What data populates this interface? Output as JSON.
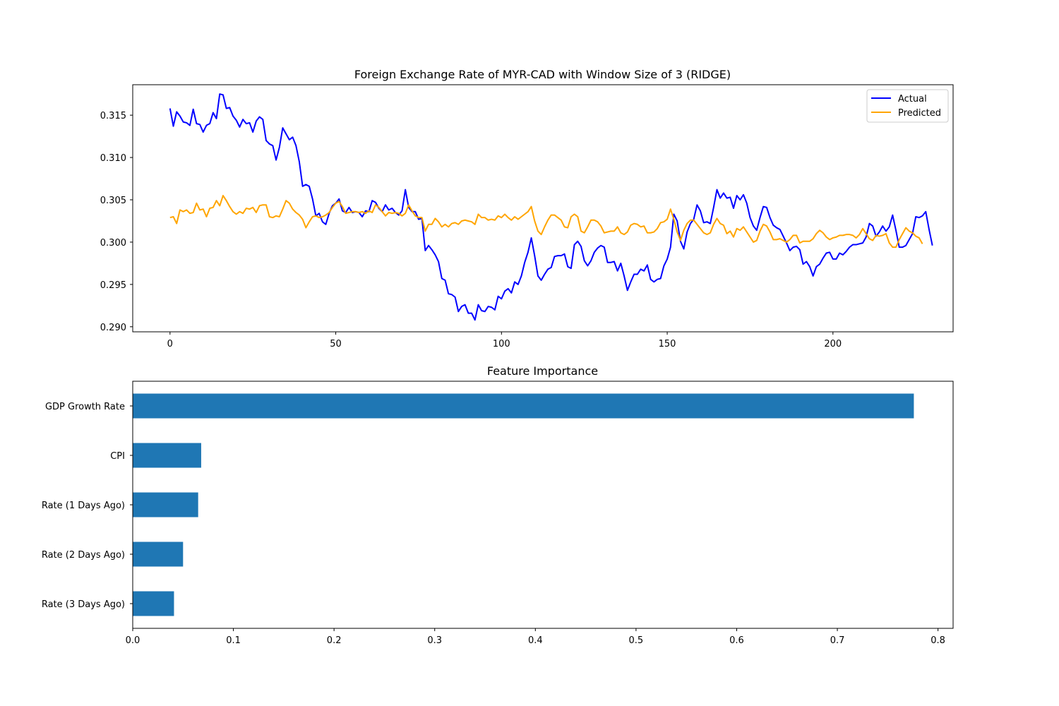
{
  "chart_data": [
    {
      "type": "line",
      "title": "Foreign Exchange Rate of MYR-CAD with Window Size of 3 (RIDGE)",
      "xlabel": "",
      "ylabel": "",
      "xlim": [
        -11.25,
        236.25
      ],
      "ylim": [
        0.2894,
        0.3186
      ],
      "xticks": [
        0,
        50,
        100,
        150,
        200
      ],
      "yticks": [
        0.29,
        0.295,
        0.3,
        0.305,
        0.31,
        0.315
      ],
      "ytick_labels": [
        "0.290",
        "0.295",
        "0.300",
        "0.305",
        "0.310",
        "0.315"
      ],
      "grid": false,
      "legend_position": "top-right",
      "series": [
        {
          "name": "Actual",
          "color": "#0000ff",
          "x_start": 0,
          "values": [
            0.3158,
            0.3137,
            0.3154,
            0.3149,
            0.3142,
            0.3141,
            0.3138,
            0.3157,
            0.314,
            0.3139,
            0.313,
            0.3138,
            0.314,
            0.3153,
            0.3146,
            0.3175,
            0.3174,
            0.3158,
            0.3159,
            0.3149,
            0.3144,
            0.3136,
            0.3145,
            0.314,
            0.3141,
            0.313,
            0.3143,
            0.3148,
            0.3145,
            0.312,
            0.3116,
            0.3114,
            0.3097,
            0.3112,
            0.3135,
            0.3128,
            0.3121,
            0.3124,
            0.3114,
            0.3095,
            0.3066,
            0.3068,
            0.3066,
            0.3051,
            0.3031,
            0.3034,
            0.3024,
            0.3021,
            0.3034,
            0.3043,
            0.3046,
            0.3051,
            0.3037,
            0.3035,
            0.3041,
            0.3035,
            0.3036,
            0.3035,
            0.303,
            0.3037,
            0.3036,
            0.3049,
            0.3047,
            0.304,
            0.3036,
            0.3044,
            0.3038,
            0.304,
            0.3035,
            0.3032,
            0.3037,
            0.3062,
            0.3041,
            0.3036,
            0.3036,
            0.3027,
            0.3028,
            0.299,
            0.2996,
            0.2991,
            0.2985,
            0.2977,
            0.2957,
            0.2955,
            0.2939,
            0.2938,
            0.2935,
            0.2918,
            0.2924,
            0.2926,
            0.2916,
            0.2916,
            0.2908,
            0.2926,
            0.2919,
            0.2918,
            0.2924,
            0.2923,
            0.292,
            0.2936,
            0.2933,
            0.2942,
            0.2945,
            0.294,
            0.2953,
            0.295,
            0.296,
            0.2976,
            0.2988,
            0.3005,
            0.2984,
            0.296,
            0.2955,
            0.2962,
            0.2968,
            0.297,
            0.2983,
            0.2984,
            0.2984,
            0.2986,
            0.2971,
            0.2969,
            0.2997,
            0.3001,
            0.2995,
            0.2978,
            0.2972,
            0.2978,
            0.2988,
            0.2993,
            0.2996,
            0.2994,
            0.2976,
            0.2976,
            0.2977,
            0.2966,
            0.2975,
            0.296,
            0.2943,
            0.2953,
            0.2962,
            0.2962,
            0.2968,
            0.2966,
            0.2973,
            0.2956,
            0.2953,
            0.2956,
            0.2957,
            0.2972,
            0.298,
            0.2994,
            0.3033,
            0.3025,
            0.3001,
            0.2992,
            0.3012,
            0.3022,
            0.3027,
            0.3044,
            0.3037,
            0.3023,
            0.3024,
            0.3022,
            0.3041,
            0.3062,
            0.3052,
            0.3058,
            0.3052,
            0.3053,
            0.304,
            0.3055,
            0.305,
            0.3056,
            0.3046,
            0.3029,
            0.3019,
            0.3014,
            0.3029,
            0.3042,
            0.3041,
            0.3029,
            0.302,
            0.3017,
            0.3015,
            0.3007,
            0.2999,
            0.299,
            0.2994,
            0.2995,
            0.2991,
            0.2974,
            0.2977,
            0.2971,
            0.296,
            0.2971,
            0.2974,
            0.2981,
            0.2987,
            0.2988,
            0.298,
            0.298,
            0.2987,
            0.2985,
            0.2989,
            0.2994,
            0.2997,
            0.2997,
            0.2998,
            0.2999,
            0.3006,
            0.3022,
            0.3019,
            0.3007,
            0.3012,
            0.3019,
            0.3013,
            0.3018,
            0.3032,
            0.3014,
            0.2994,
            0.2994,
            0.2996,
            0.3003,
            0.301,
            0.303,
            0.3029,
            0.3031,
            0.3036,
            0.3015,
            0.2996
          ]
        },
        {
          "name": "Predicted",
          "color": "#ffa500",
          "x_start": 0,
          "values": [
            0.3029,
            0.303,
            0.3022,
            0.3038,
            0.3036,
            0.3038,
            0.3034,
            0.3035,
            0.3046,
            0.3038,
            0.3039,
            0.303,
            0.304,
            0.3041,
            0.3049,
            0.3043,
            0.3055,
            0.3049,
            0.3042,
            0.3036,
            0.3033,
            0.3036,
            0.3034,
            0.304,
            0.3039,
            0.3041,
            0.3035,
            0.3043,
            0.3044,
            0.3044,
            0.303,
            0.3029,
            0.3031,
            0.303,
            0.3039,
            0.3049,
            0.3046,
            0.3039,
            0.3035,
            0.3032,
            0.3027,
            0.3017,
            0.3024,
            0.303,
            0.3031,
            0.3029,
            0.303,
            0.3032,
            0.3035,
            0.3041,
            0.3046,
            0.3048,
            0.3042,
            0.3034,
            0.3035,
            0.3036,
            0.3036,
            0.3035,
            0.3036,
            0.3034,
            0.3037,
            0.3035,
            0.3044,
            0.3041,
            0.3036,
            0.3031,
            0.3035,
            0.3034,
            0.3035,
            0.3034,
            0.3031,
            0.3034,
            0.3044,
            0.3037,
            0.3031,
            0.3029,
            0.3029,
            0.3013,
            0.3021,
            0.3021,
            0.3028,
            0.3024,
            0.3018,
            0.3021,
            0.3018,
            0.3022,
            0.3023,
            0.3021,
            0.3025,
            0.3026,
            0.3025,
            0.3024,
            0.3021,
            0.3033,
            0.3029,
            0.3029,
            0.3026,
            0.3027,
            0.3026,
            0.3031,
            0.3029,
            0.3033,
            0.3029,
            0.3026,
            0.303,
            0.3027,
            0.303,
            0.3033,
            0.3036,
            0.3042,
            0.3025,
            0.3013,
            0.3009,
            0.3018,
            0.3026,
            0.3032,
            0.3032,
            0.3029,
            0.3026,
            0.3018,
            0.3017,
            0.303,
            0.3033,
            0.303,
            0.3013,
            0.3011,
            0.3018,
            0.3026,
            0.3026,
            0.3024,
            0.3019,
            0.3011,
            0.3012,
            0.3013,
            0.3013,
            0.3018,
            0.3011,
            0.3009,
            0.3012,
            0.302,
            0.3022,
            0.3021,
            0.3018,
            0.3019,
            0.3011,
            0.3011,
            0.3012,
            0.3016,
            0.3023,
            0.3024,
            0.3027,
            0.3039,
            0.3027,
            0.3012,
            0.3002,
            0.3014,
            0.3022,
            0.3026,
            0.3026,
            0.3021,
            0.3016,
            0.3011,
            0.3009,
            0.3011,
            0.3021,
            0.3028,
            0.3022,
            0.302,
            0.301,
            0.3013,
            0.3006,
            0.3016,
            0.3014,
            0.3018,
            0.3012,
            0.3006,
            0.3,
            0.3002,
            0.3013,
            0.3021,
            0.3019,
            0.3012,
            0.3003,
            0.3003,
            0.3004,
            0.3002,
            0.3,
            0.3003,
            0.3008,
            0.3008,
            0.2999,
            0.3001,
            0.3001,
            0.3001,
            0.3004,
            0.301,
            0.3014,
            0.3011,
            0.3006,
            0.3003,
            0.3005,
            0.3006,
            0.3008,
            0.3008,
            0.3009,
            0.3009,
            0.3008,
            0.3005,
            0.3009,
            0.3016,
            0.301,
            0.3004,
            0.3002,
            0.3008,
            0.3007,
            0.3008,
            0.301,
            0.2999,
            0.2994,
            0.2994,
            0.3003,
            0.301,
            0.3017,
            0.3013,
            0.3011,
            0.3007,
            0.3005,
            0.2998
          ]
        }
      ]
    },
    {
      "type": "bar",
      "orientation": "horizontal",
      "title": "Feature Importance",
      "xlabel": "",
      "ylabel": "",
      "xlim": [
        0,
        0.815
      ],
      "xticks": [
        0.0,
        0.1,
        0.2,
        0.3,
        0.4,
        0.5,
        0.6,
        0.7,
        0.8
      ],
      "xtick_labels": [
        "0.0",
        "0.1",
        "0.2",
        "0.3",
        "0.4",
        "0.5",
        "0.6",
        "0.7",
        "0.8"
      ],
      "grid": false,
      "color": "#1f77b4",
      "categories": [
        "GDP Growth Rate",
        "CPI",
        "Rate (1 Days Ago)",
        "Rate (2 Days Ago)",
        "Rate (3 Days Ago)"
      ],
      "values": [
        0.776,
        0.068,
        0.065,
        0.05,
        0.041
      ]
    }
  ]
}
